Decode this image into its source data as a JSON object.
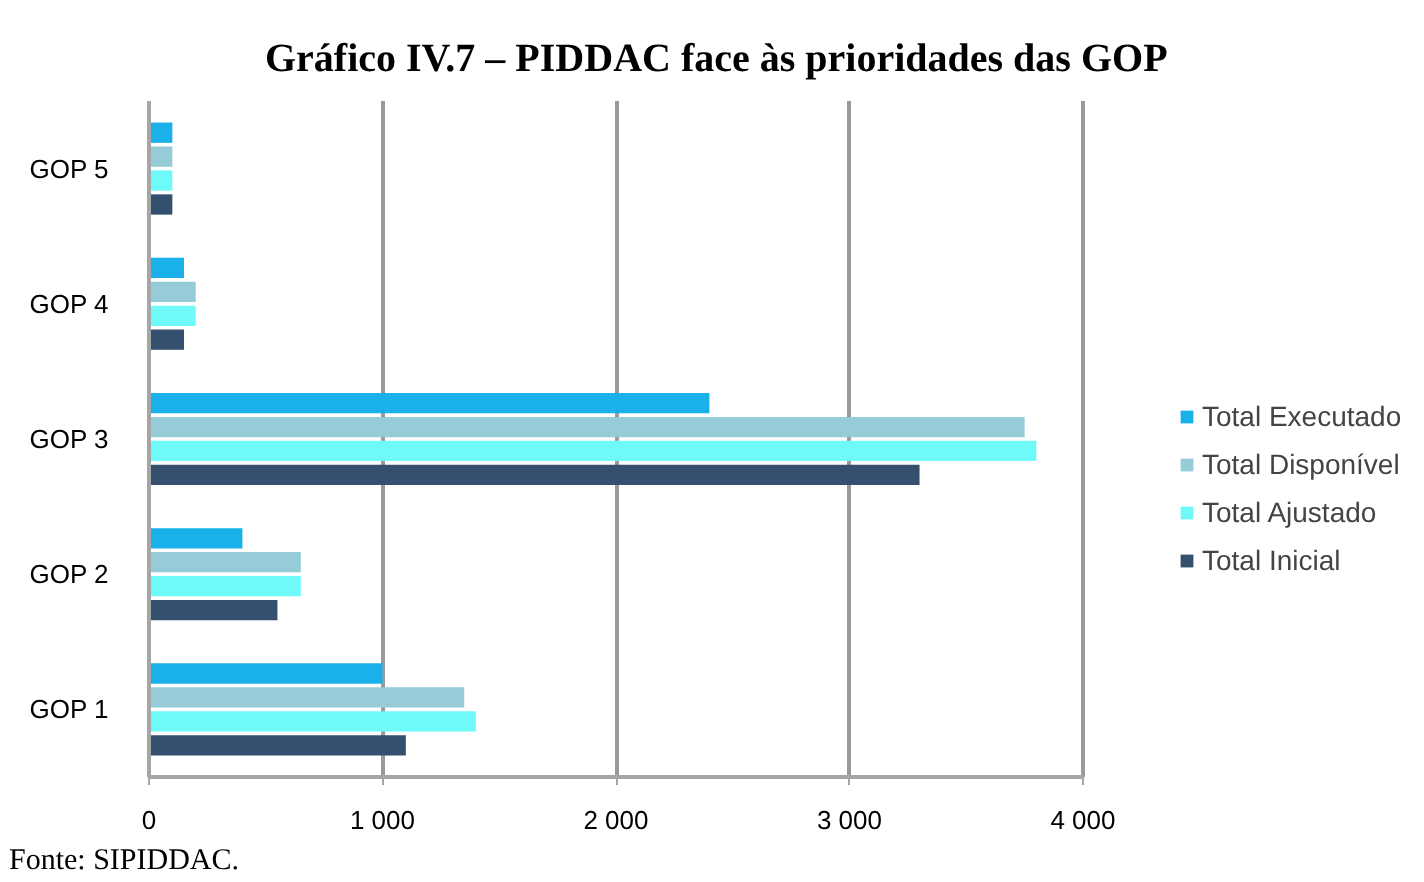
{
  "chart_data": {
    "type": "bar",
    "orientation": "horizontal",
    "title": "Gráfico IV.7 – PIDDAC face às prioridades das GOP",
    "categories": [
      "GOP 5",
      "GOP 4",
      "GOP 3",
      "GOP 2",
      "GOP 1"
    ],
    "series": [
      {
        "name": "Total Executado",
        "color": "#1ab0ea",
        "values": [
          100,
          150,
          2400,
          400,
          1000
        ]
      },
      {
        "name": "Total Disponível",
        "color": "#96cbd8",
        "values": [
          100,
          200,
          3750,
          650,
          1350
        ]
      },
      {
        "name": "Total Ajustado",
        "color": "#6ffafa",
        "values": [
          100,
          200,
          3800,
          650,
          1400
        ]
      },
      {
        "name": "Total Inicial",
        "color": "#354f6e",
        "values": [
          100,
          150,
          3300,
          550,
          1100
        ]
      }
    ],
    "xlim": [
      0,
      4000
    ],
    "xticks": [
      0,
      {
        "value": 1000,
        "label": "1 000"
      },
      {
        "value": 2000,
        "label": "2 000"
      },
      {
        "value": 3000,
        "label": "3 000"
      },
      {
        "value": 4000,
        "label": "4 000"
      }
    ],
    "grid": "x",
    "legend": "right",
    "annotations": [
      "Fonte: SIPIDDAC."
    ]
  }
}
